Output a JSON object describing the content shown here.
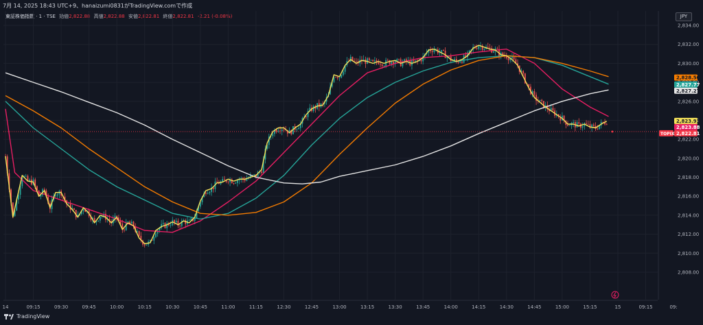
{
  "header": {
    "timestamp_line": "7月 14, 2025 18:43 UTC+9、hanaizumi0831がTradingView.comで作成"
  },
  "legend": {
    "symbol": "東証株価指数 · 1 · TSE",
    "open_label": "始値",
    "open_value": "2,822.88",
    "high_label": "高値",
    "high_value": "2,822.88",
    "low_label": "安値",
    "low_value": "2,822.81",
    "close_label": "終値",
    "close_value": "2,822.81",
    "change": "-2.21 (-0.08%)"
  },
  "currency": "JPY",
  "footer": {
    "brand": "TradingView"
  },
  "colors": {
    "background": "#131722",
    "grid": "#1e222d",
    "up": "#26a69a",
    "down": "#ef5350",
    "ma_fast": "#f7e35a",
    "ma_pink": "#e91e63",
    "ma_teal": "#26a69a",
    "ma_orange": "#f57c00",
    "ma_white": "#e6e6e6",
    "last_price": "#f23645"
  },
  "chart_data": {
    "type": "candlestick",
    "ylim": [
      2807.6,
      2835.2
    ],
    "yticks": [
      2808,
      2810,
      2812,
      2814,
      2816,
      2818,
      2820,
      2822,
      2824,
      2826,
      2828,
      2830,
      2832,
      2834
    ],
    "ytick_labels": [
      "2,808.00",
      "2,810.00",
      "2,812.00",
      "2,814.00",
      "2,816.00",
      "2,818.00",
      "2,820.00",
      "2,822.00",
      "2,824.00",
      "2,826.00",
      "2,828.00",
      "2,830.00",
      "2,832.00",
      "2,834.00"
    ],
    "xticks": [
      "14",
      "09:15",
      "09:30",
      "09:45",
      "10:00",
      "10:15",
      "10:30",
      "10:45",
      "11:00",
      "11:15",
      "12:30",
      "12:45",
      "13:00",
      "13:15",
      "13:30",
      "13:45",
      "14:00",
      "14:15",
      "14:30",
      "14:45",
      "15:00",
      "15:15",
      "15",
      "09:15",
      "09:"
    ],
    "xtick_index": [
      0,
      15,
      30,
      45,
      60,
      75,
      90,
      105,
      120,
      135,
      150,
      165,
      180,
      195,
      210,
      225,
      240,
      255,
      270,
      285,
      300,
      315,
      330,
      345,
      360
    ],
    "price_path": [
      [
        0,
        2820.2
      ],
      [
        2,
        2817.0
      ],
      [
        4,
        2813.8
      ],
      [
        6,
        2815.6
      ],
      [
        9,
        2818.2
      ],
      [
        12,
        2817.6
      ],
      [
        15,
        2817.5
      ],
      [
        18,
        2816.0
      ],
      [
        21,
        2816.6
      ],
      [
        24,
        2814.8
      ],
      [
        27,
        2816.4
      ],
      [
        30,
        2816.4
      ],
      [
        33,
        2815.2
      ],
      [
        36,
        2814.6
      ],
      [
        39,
        2813.8
      ],
      [
        42,
        2814.8
      ],
      [
        45,
        2814.2
      ],
      [
        48,
        2813.2
      ],
      [
        51,
        2814.0
      ],
      [
        54,
        2813.8
      ],
      [
        57,
        2813.2
      ],
      [
        60,
        2813.8
      ],
      [
        63,
        2812.5
      ],
      [
        66,
        2813.2
      ],
      [
        69,
        2812.9
      ],
      [
        72,
        2811.6
      ],
      [
        75,
        2811.0
      ],
      [
        78,
        2811.1
      ],
      [
        81,
        2812.4
      ],
      [
        84,
        2812.8
      ],
      [
        87,
        2813.0
      ],
      [
        90,
        2813.3
      ],
      [
        93,
        2813.0
      ],
      [
        96,
        2813.4
      ],
      [
        99,
        2813.2
      ],
      [
        102,
        2813.8
      ],
      [
        105,
        2815.5
      ],
      [
        108,
        2816.6
      ],
      [
        111,
        2816.8
      ],
      [
        114,
        2817.4
      ],
      [
        117,
        2817.5
      ],
      [
        120,
        2817.8
      ],
      [
        123,
        2817.6
      ],
      [
        126,
        2817.8
      ],
      [
        129,
        2817.8
      ],
      [
        132,
        2818.0
      ],
      [
        135,
        2818.2
      ],
      [
        138,
        2818.8
      ],
      [
        141,
        2821.6
      ],
      [
        144,
        2822.8
      ],
      [
        147,
        2823.2
      ],
      [
        150,
        2823.2
      ],
      [
        153,
        2822.7
      ],
      [
        156,
        2823.2
      ],
      [
        159,
        2823.6
      ],
      [
        162,
        2824.6
      ],
      [
        165,
        2825.2
      ],
      [
        168,
        2825.5
      ],
      [
        171,
        2825.6
      ],
      [
        174,
        2826.6
      ],
      [
        177,
        2828.8
      ],
      [
        180,
        2828.6
      ],
      [
        183,
        2829.8
      ],
      [
        186,
        2830.4
      ],
      [
        189,
        2830.0
      ],
      [
        192,
        2830.3
      ],
      [
        195,
        2830.2
      ],
      [
        198,
        2830.0
      ],
      [
        201,
        2830.2
      ],
      [
        204,
        2830.0
      ],
      [
        207,
        2830.2
      ],
      [
        210,
        2830.3
      ],
      [
        213,
        2830.0
      ],
      [
        216,
        2830.2
      ],
      [
        219,
        2830.0
      ],
      [
        222,
        2830.2
      ],
      [
        225,
        2830.6
      ],
      [
        228,
        2831.4
      ],
      [
        231,
        2831.5
      ],
      [
        234,
        2831.2
      ],
      [
        237,
        2830.9
      ],
      [
        240,
        2830.4
      ],
      [
        243,
        2830.2
      ],
      [
        246,
        2830.4
      ],
      [
        249,
        2830.8
      ],
      [
        252,
        2831.6
      ],
      [
        255,
        2831.9
      ],
      [
        258,
        2831.7
      ],
      [
        261,
        2831.5
      ],
      [
        264,
        2831.4
      ],
      [
        267,
        2830.9
      ],
      [
        270,
        2830.8
      ],
      [
        273,
        2830.4
      ],
      [
        276,
        2829.8
      ],
      [
        279,
        2828.6
      ],
      [
        282,
        2827.4
      ],
      [
        285,
        2826.4
      ],
      [
        288,
        2825.9
      ],
      [
        291,
        2825.4
      ],
      [
        294,
        2825.0
      ],
      [
        297,
        2824.6
      ],
      [
        300,
        2824.2
      ],
      [
        303,
        2823.6
      ],
      [
        306,
        2823.6
      ],
      [
        309,
        2823.4
      ],
      [
        312,
        2823.6
      ],
      [
        315,
        2823.3
      ],
      [
        318,
        2823.2
      ],
      [
        321,
        2823.6
      ],
      [
        324,
        2823.9
      ]
    ],
    "series": [
      {
        "color": "#e91e63",
        "values": [
          [
            0,
            2825.2
          ],
          [
            5,
            2818.5
          ],
          [
            15,
            2816.6
          ],
          [
            30,
            2815.6
          ],
          [
            45,
            2814.6
          ],
          [
            60,
            2813.6
          ],
          [
            75,
            2812.4
          ],
          [
            90,
            2812.2
          ],
          [
            105,
            2813.4
          ],
          [
            120,
            2815.4
          ],
          [
            135,
            2817.6
          ],
          [
            150,
            2820.6
          ],
          [
            165,
            2823.6
          ],
          [
            180,
            2826.6
          ],
          [
            195,
            2829.0
          ],
          [
            210,
            2830.0
          ],
          [
            225,
            2830.6
          ],
          [
            240,
            2830.8
          ],
          [
            255,
            2831.2
          ],
          [
            270,
            2831.5
          ],
          [
            285,
            2830.0
          ],
          [
            300,
            2827.3
          ],
          [
            315,
            2825.4
          ],
          [
            325,
            2824.4
          ]
        ]
      },
      {
        "color": "#26a69a",
        "values": [
          [
            0,
            2826.0
          ],
          [
            15,
            2823.2
          ],
          [
            30,
            2821.0
          ],
          [
            45,
            2818.8
          ],
          [
            60,
            2817.0
          ],
          [
            75,
            2815.6
          ],
          [
            90,
            2814.2
          ],
          [
            105,
            2813.6
          ],
          [
            120,
            2814.2
          ],
          [
            135,
            2815.8
          ],
          [
            150,
            2818.2
          ],
          [
            165,
            2821.4
          ],
          [
            180,
            2824.2
          ],
          [
            195,
            2826.4
          ],
          [
            210,
            2828.0
          ],
          [
            225,
            2829.2
          ],
          [
            240,
            2830.1
          ],
          [
            255,
            2830.6
          ],
          [
            270,
            2830.8
          ],
          [
            285,
            2830.6
          ],
          [
            300,
            2829.8
          ],
          [
            315,
            2828.6
          ],
          [
            325,
            2827.8
          ]
        ]
      },
      {
        "color": "#f57c00",
        "values": [
          [
            0,
            2826.6
          ],
          [
            15,
            2825.0
          ],
          [
            30,
            2823.2
          ],
          [
            45,
            2821.0
          ],
          [
            60,
            2819.0
          ],
          [
            75,
            2817.0
          ],
          [
            90,
            2815.4
          ],
          [
            105,
            2814.2
          ],
          [
            120,
            2814.0
          ],
          [
            135,
            2814.3
          ],
          [
            150,
            2815.4
          ],
          [
            165,
            2817.4
          ],
          [
            180,
            2820.4
          ],
          [
            195,
            2823.2
          ],
          [
            210,
            2825.8
          ],
          [
            225,
            2827.8
          ],
          [
            240,
            2829.3
          ],
          [
            255,
            2830.3
          ],
          [
            270,
            2830.8
          ],
          [
            285,
            2830.6
          ],
          [
            300,
            2830.0
          ],
          [
            315,
            2829.2
          ],
          [
            325,
            2828.6
          ]
        ]
      },
      {
        "color": "#e6e6e6",
        "values": [
          [
            0,
            2829.0
          ],
          [
            15,
            2828.0
          ],
          [
            30,
            2827.0
          ],
          [
            45,
            2825.9
          ],
          [
            60,
            2824.8
          ],
          [
            75,
            2823.5
          ],
          [
            90,
            2822.0
          ],
          [
            105,
            2820.6
          ],
          [
            120,
            2819.2
          ],
          [
            135,
            2818.0
          ],
          [
            150,
            2817.4
          ],
          [
            160,
            2817.3
          ],
          [
            170,
            2817.5
          ],
          [
            180,
            2818.1
          ],
          [
            195,
            2818.7
          ],
          [
            210,
            2819.3
          ],
          [
            225,
            2820.2
          ],
          [
            240,
            2821.3
          ],
          [
            255,
            2822.6
          ],
          [
            270,
            2823.8
          ],
          [
            285,
            2825.0
          ],
          [
            300,
            2826.0
          ],
          [
            315,
            2826.8
          ],
          [
            325,
            2827.2
          ]
        ]
      }
    ],
    "markers": [
      {
        "label": "2,828.50",
        "value": 2828.5,
        "color": "#f57c00",
        "text_color": "#131722"
      },
      {
        "label": "2,827.77",
        "value": 2827.77,
        "color": "#26a69a",
        "text_color": "#ffffff"
      },
      {
        "label": "2,827.27",
        "value": 2827.27,
        "color": "#e6e6e6",
        "text_color": "#131722"
      },
      {
        "label": "2,823.93",
        "value": 2823.93,
        "color": "#f7e35a",
        "text_color": "#131722"
      },
      {
        "label": "2,823.88",
        "value": 2823.88,
        "color": "#e91e63",
        "text_color": "#ffffff"
      },
      {
        "label": "2,822.81",
        "value": 2822.81,
        "color": "#f23645",
        "text_color": "#ffffff",
        "tag": "TOPIX"
      }
    ],
    "last_price": 2822.81
  }
}
